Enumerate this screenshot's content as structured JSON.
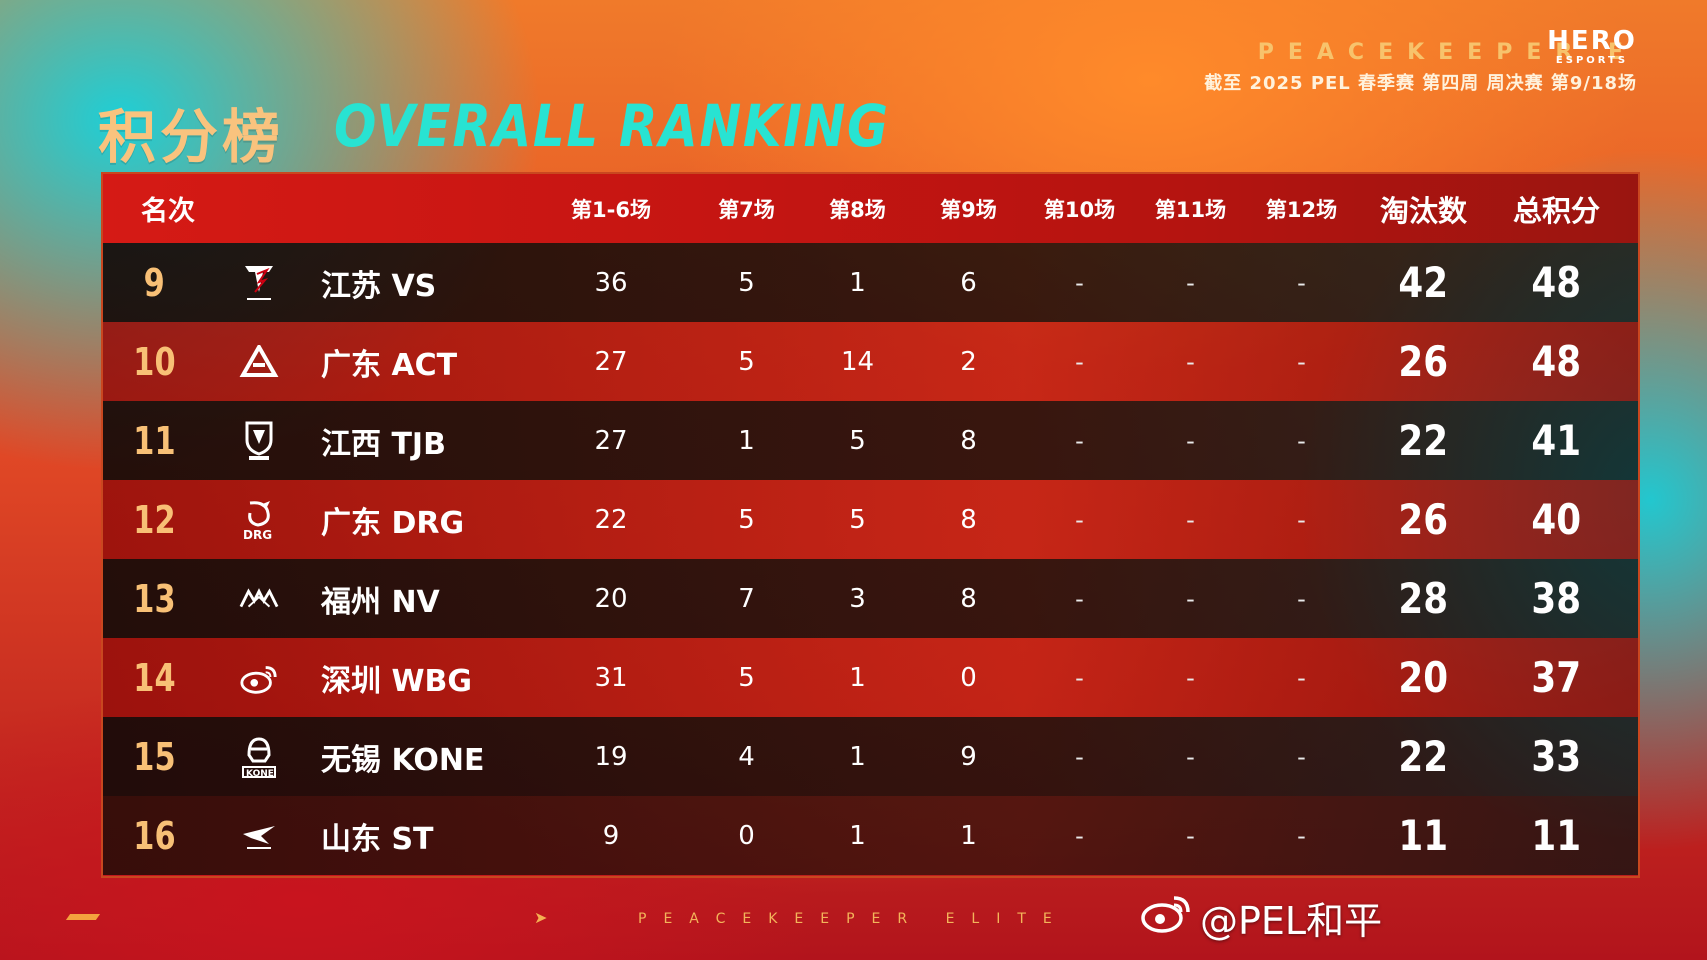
{
  "brand": {
    "line1": "PEACEKEEPER E",
    "line2": "截至 2025 PEL 春季赛 第四周 周决赛 第9/18场",
    "logo_main": "HERO",
    "logo_sub": "ESPORTS"
  },
  "title": {
    "cn": "积分榜",
    "en": "OVERALL RANKING"
  },
  "table": {
    "headers": {
      "rank": "名次",
      "g1_6": "第1-6场",
      "g7": "第7场",
      "g8": "第8场",
      "g9": "第9场",
      "g10": "第10场",
      "g11": "第11场",
      "g12": "第12场",
      "elims": "淘汰数",
      "total": "总积分"
    },
    "rows": [
      {
        "rank": "9",
        "logo": "vs-logo",
        "team": "江苏 VS",
        "g1_6": "36",
        "g7": "5",
        "g8": "1",
        "g9": "6",
        "g10": "-",
        "g11": "-",
        "g12": "-",
        "elims": "42",
        "total": "48"
      },
      {
        "rank": "10",
        "logo": "act-logo",
        "team": "广东 ACT",
        "g1_6": "27",
        "g7": "5",
        "g8": "14",
        "g9": "2",
        "g10": "-",
        "g11": "-",
        "g12": "-",
        "elims": "26",
        "total": "48"
      },
      {
        "rank": "11",
        "logo": "tjb-logo",
        "team": "江西 TJB",
        "g1_6": "27",
        "g7": "1",
        "g8": "5",
        "g9": "8",
        "g10": "-",
        "g11": "-",
        "g12": "-",
        "elims": "22",
        "total": "41"
      },
      {
        "rank": "12",
        "logo": "drg-logo",
        "team": "广东 DRG",
        "g1_6": "22",
        "g7": "5",
        "g8": "5",
        "g9": "8",
        "g10": "-",
        "g11": "-",
        "g12": "-",
        "elims": "26",
        "total": "40"
      },
      {
        "rank": "13",
        "logo": "nv-logo",
        "team": "福州 NV",
        "g1_6": "20",
        "g7": "7",
        "g8": "3",
        "g9": "8",
        "g10": "-",
        "g11": "-",
        "g12": "-",
        "elims": "28",
        "total": "38"
      },
      {
        "rank": "14",
        "logo": "wbg-logo",
        "team": "深圳 WBG",
        "g1_6": "31",
        "g7": "5",
        "g8": "1",
        "g9": "0",
        "g10": "-",
        "g11": "-",
        "g12": "-",
        "elims": "20",
        "total": "37"
      },
      {
        "rank": "15",
        "logo": "kone-logo",
        "team": "无锡 KONE",
        "g1_6": "19",
        "g7": "4",
        "g8": "1",
        "g9": "9",
        "g10": "-",
        "g11": "-",
        "g12": "-",
        "elims": "22",
        "total": "33"
      },
      {
        "rank": "16",
        "logo": "st-logo",
        "team": "山东 ST",
        "g1_6": "9",
        "g7": "0",
        "g8": "1",
        "g9": "1",
        "g10": "-",
        "g11": "-",
        "g12": "-",
        "elims": "11",
        "total": "11"
      }
    ]
  },
  "footer": {
    "pe": "PEACEKEEPER ELITE",
    "watermark": "@PEL和平"
  }
}
